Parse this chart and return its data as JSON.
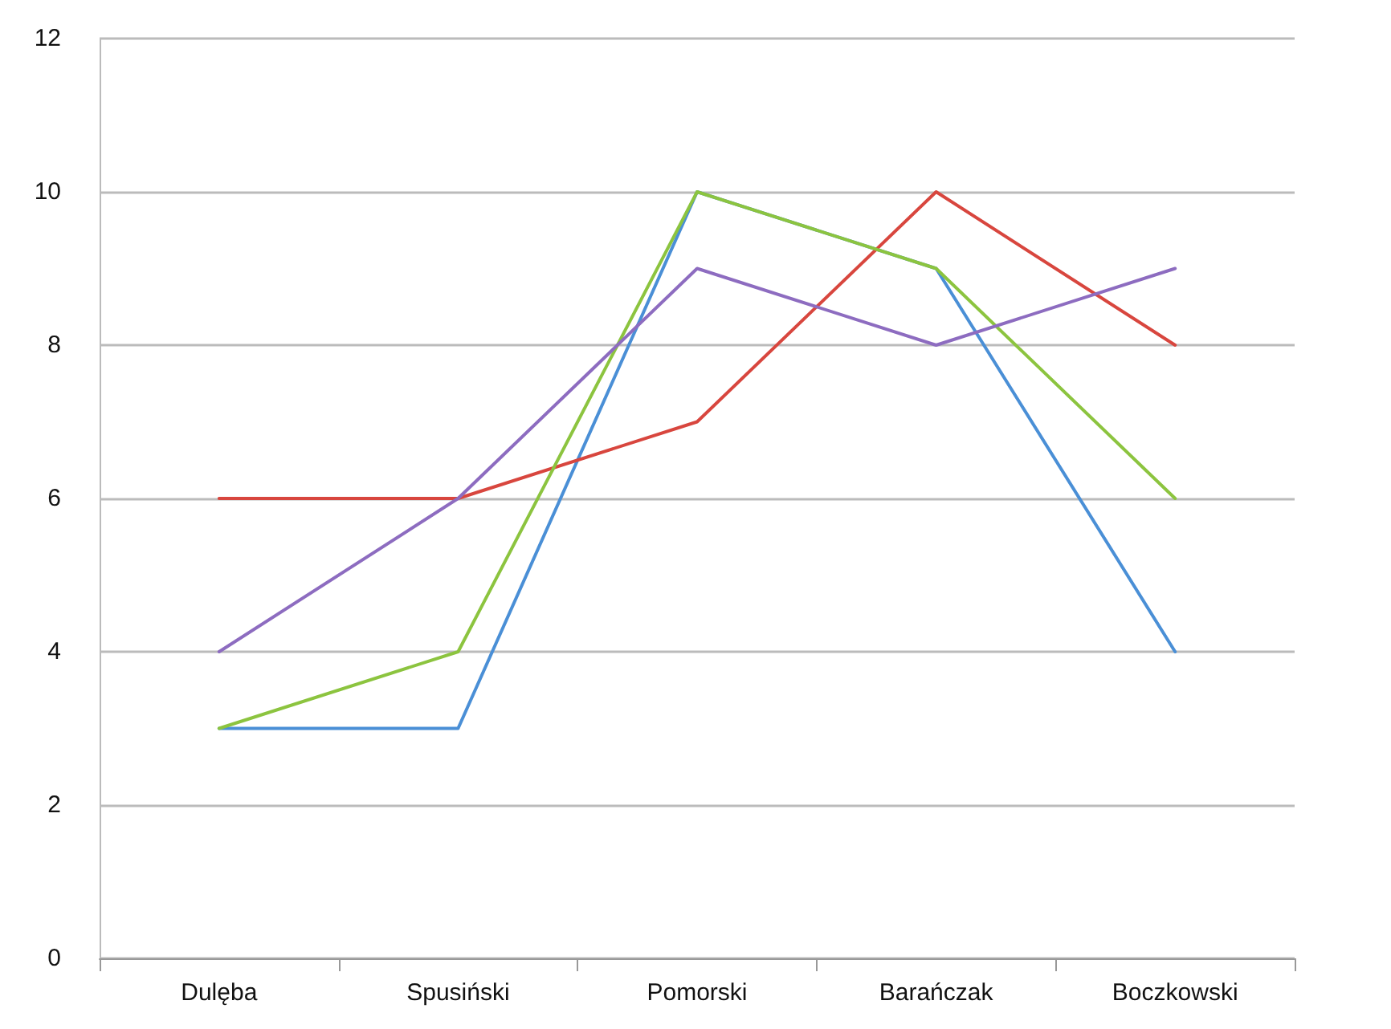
{
  "chart_data": {
    "type": "line",
    "categories": [
      "Dulęba",
      "Spusiński",
      "Pomorski",
      "Barańczak",
      "Boczkowski"
    ],
    "series": [
      {
        "color": "#4a8fd6",
        "values": [
          3,
          3,
          10,
          9,
          4
        ]
      },
      {
        "color": "#d8463e",
        "values": [
          6,
          6,
          7,
          10,
          8
        ]
      },
      {
        "color": "#8cc43f",
        "values": [
          3,
          4,
          10,
          9,
          6
        ]
      },
      {
        "color": "#8d6cc0",
        "values": [
          4,
          6,
          9,
          8,
          9
        ]
      }
    ],
    "ylim": [
      0,
      12
    ],
    "yticks": [
      0,
      2,
      4,
      6,
      8,
      10,
      12
    ],
    "grid": "y",
    "marker": "none",
    "line_style": "solid"
  }
}
